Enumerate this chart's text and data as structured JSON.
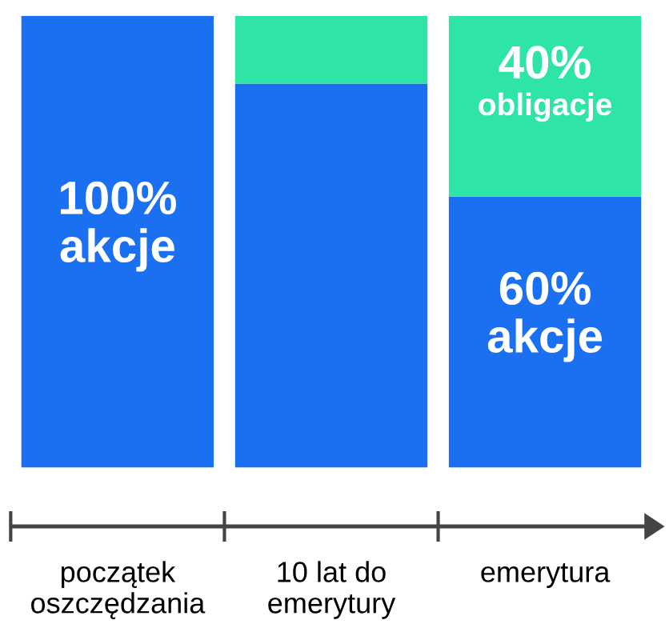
{
  "chart_data": {
    "type": "bar",
    "stacked": true,
    "categories": [
      "początek\noszczędzania",
      "10 lat do\nemerytury",
      "emerytura"
    ],
    "series": [
      {
        "name": "akcje",
        "color": "#1a70f0",
        "values": [
          100,
          85,
          60
        ],
        "value_labels": [
          "100%",
          null,
          "60%"
        ]
      },
      {
        "name": "obligacje",
        "color": "#2ee5a5",
        "values": [
          0,
          15,
          40
        ],
        "value_labels": [
          null,
          null,
          "40%"
        ]
      }
    ],
    "legend": false,
    "grid": false
  }
}
